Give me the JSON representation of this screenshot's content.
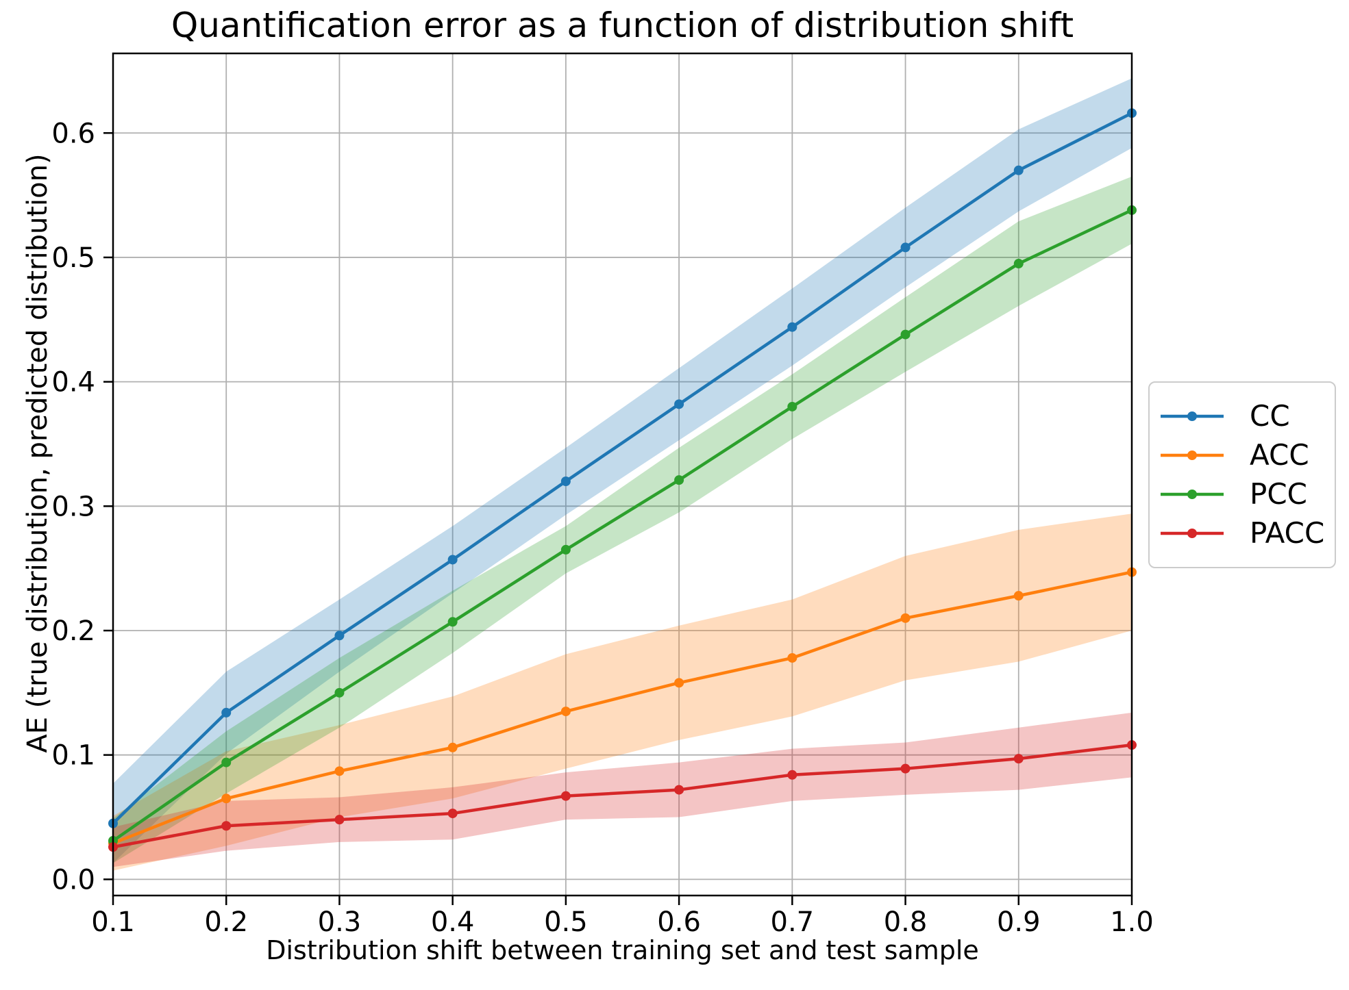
{
  "title": "Quantification error as a function of distribution shift",
  "xlabel": "Distribution shift between training set and test sample",
  "ylabel": "AE (true distribution, predicted distribution)",
  "style": {
    "grid_color": "#b0b0b0",
    "spine_color": "#000000",
    "tick_label_color": "#000000",
    "band_alpha": 0.27,
    "legend_border_color": "#cccccc"
  },
  "chart_data": {
    "type": "line",
    "title": "Quantification error as a function of distribution shift",
    "xlabel": "Distribution shift between training set and test sample",
    "ylabel": "AE (true distribution, predicted distribution)",
    "grid": true,
    "legend_position": "center right outside",
    "xlim": [
      0.1,
      1.0
    ],
    "ylim": [
      -0.013,
      0.664
    ],
    "x": [
      0.1,
      0.2,
      0.3,
      0.4,
      0.5,
      0.6,
      0.7,
      0.8,
      0.9,
      1.0
    ],
    "xticks": [
      {
        "v": 0.1,
        "label": "0.1"
      },
      {
        "v": 0.2,
        "label": "0.2"
      },
      {
        "v": 0.3,
        "label": "0.3"
      },
      {
        "v": 0.4,
        "label": "0.4"
      },
      {
        "v": 0.5,
        "label": "0.5"
      },
      {
        "v": 0.6,
        "label": "0.6"
      },
      {
        "v": 0.7,
        "label": "0.7"
      },
      {
        "v": 0.8,
        "label": "0.8"
      },
      {
        "v": 0.9,
        "label": "0.9"
      },
      {
        "v": 1.0,
        "label": "1.0"
      }
    ],
    "yticks": [
      {
        "v": 0.0,
        "label": "0.0"
      },
      {
        "v": 0.1,
        "label": "0.1"
      },
      {
        "v": 0.2,
        "label": "0.2"
      },
      {
        "v": 0.3,
        "label": "0.3"
      },
      {
        "v": 0.4,
        "label": "0.4"
      },
      {
        "v": 0.5,
        "label": "0.5"
      },
      {
        "v": 0.6,
        "label": "0.6"
      }
    ],
    "series": [
      {
        "name": "CC",
        "color": "#1f77b4",
        "values": [
          0.045,
          0.134,
          0.196,
          0.257,
          0.32,
          0.382,
          0.444,
          0.508,
          0.57,
          0.616
        ],
        "band_halfwidth": [
          0.032,
          0.033,
          0.029,
          0.027,
          0.027,
          0.029,
          0.031,
          0.032,
          0.033,
          0.028
        ]
      },
      {
        "name": "ACC",
        "color": "#ff7f0e",
        "values": [
          0.029,
          0.065,
          0.087,
          0.106,
          0.135,
          0.158,
          0.178,
          0.21,
          0.228,
          0.247
        ],
        "band_halfwidth": [
          0.022,
          0.038,
          0.037,
          0.041,
          0.046,
          0.046,
          0.047,
          0.05,
          0.053,
          0.047
        ]
      },
      {
        "name": "PCC",
        "color": "#2ca02c",
        "values": [
          0.031,
          0.094,
          0.15,
          0.207,
          0.265,
          0.321,
          0.38,
          0.438,
          0.495,
          0.538
        ],
        "band_halfwidth": [
          0.018,
          0.025,
          0.028,
          0.025,
          0.019,
          0.026,
          0.026,
          0.03,
          0.034,
          0.027
        ]
      },
      {
        "name": "PACC",
        "color": "#d62728",
        "values": [
          0.026,
          0.043,
          0.048,
          0.053,
          0.067,
          0.072,
          0.084,
          0.089,
          0.097,
          0.108
        ],
        "band_halfwidth": [
          0.016,
          0.02,
          0.018,
          0.021,
          0.019,
          0.022,
          0.021,
          0.021,
          0.025,
          0.026
        ]
      }
    ]
  },
  "legend": {
    "items": [
      {
        "label": "CC",
        "color": "#1f77b4"
      },
      {
        "label": "ACC",
        "color": "#ff7f0e"
      },
      {
        "label": "PCC",
        "color": "#2ca02c"
      },
      {
        "label": "PACC",
        "color": "#d62728"
      }
    ]
  }
}
